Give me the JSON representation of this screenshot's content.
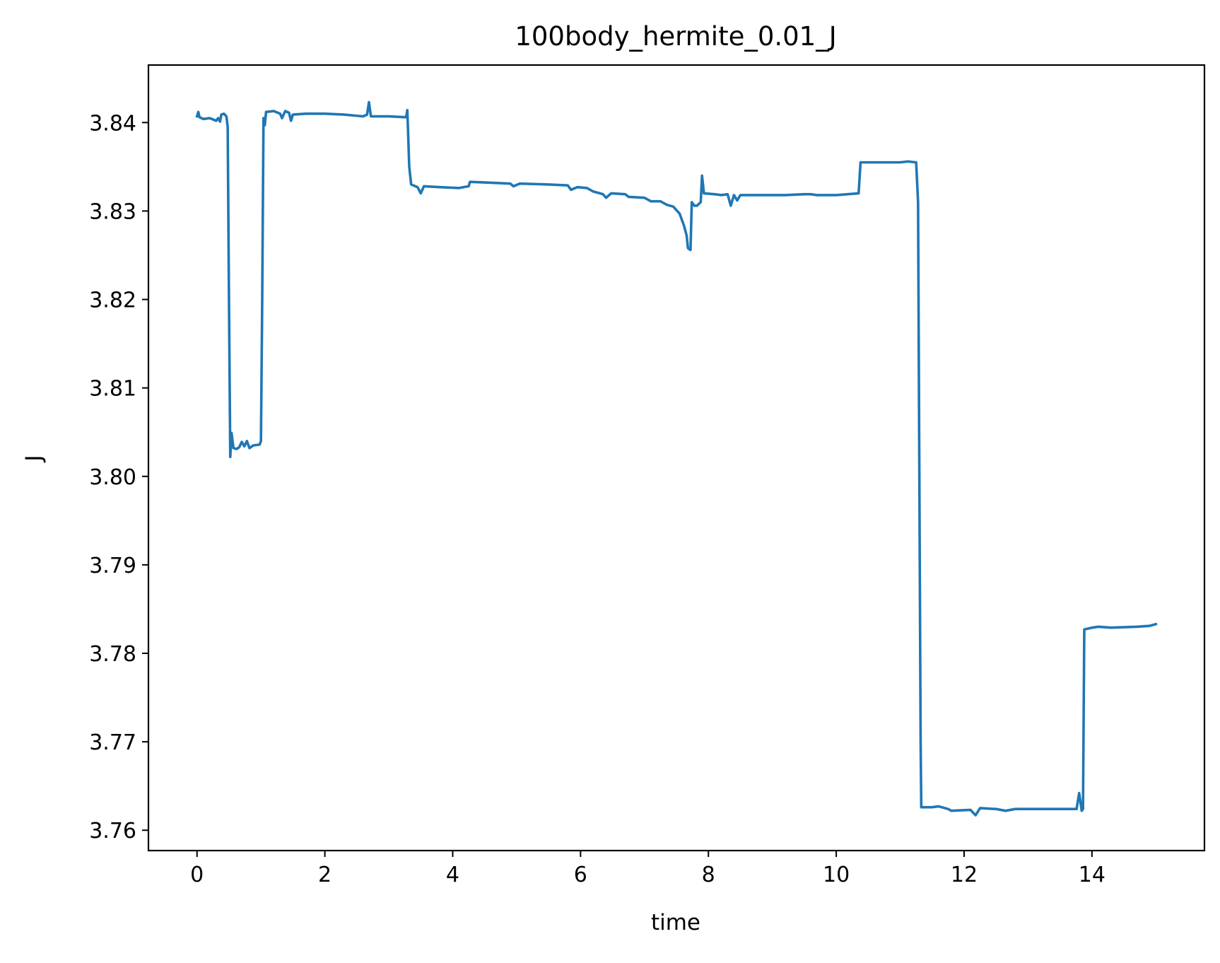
{
  "chart_data": {
    "type": "line",
    "title": "100body_hermite_0.01_J",
    "xlabel": "time",
    "ylabel": "J",
    "xlim": [
      -0.76,
      15.76
    ],
    "ylim": [
      3.7577,
      3.8465
    ],
    "xticks": [
      0,
      2,
      4,
      6,
      8,
      10,
      12,
      14
    ],
    "xtick_labels": [
      "0",
      "2",
      "4",
      "6",
      "8",
      "10",
      "12",
      "14"
    ],
    "yticks": [
      3.76,
      3.77,
      3.78,
      3.79,
      3.8,
      3.81,
      3.82,
      3.83,
      3.84
    ],
    "ytick_labels": [
      "3.76",
      "3.77",
      "3.78",
      "3.79",
      "3.80",
      "3.81",
      "3.82",
      "3.83",
      "3.84"
    ],
    "grid": false,
    "legend": "none",
    "series": [
      {
        "color": "#1f77b4",
        "points": [
          [
            0.0,
            3.8407
          ],
          [
            0.02,
            3.8412
          ],
          [
            0.04,
            3.8406
          ],
          [
            0.1,
            3.8404
          ],
          [
            0.2,
            3.8405
          ],
          [
            0.3,
            3.8402
          ],
          [
            0.33,
            3.8405
          ],
          [
            0.36,
            3.8401
          ],
          [
            0.38,
            3.8409
          ],
          [
            0.42,
            3.841
          ],
          [
            0.46,
            3.8407
          ],
          [
            0.48,
            3.8395
          ],
          [
            0.5,
            3.82
          ],
          [
            0.52,
            3.8022
          ],
          [
            0.54,
            3.8049
          ],
          [
            0.57,
            3.8032
          ],
          [
            0.62,
            3.8031
          ],
          [
            0.66,
            3.8033
          ],
          [
            0.7,
            3.8039
          ],
          [
            0.74,
            3.8034
          ],
          [
            0.78,
            3.804
          ],
          [
            0.82,
            3.8032
          ],
          [
            0.88,
            3.8035
          ],
          [
            0.98,
            3.8036
          ],
          [
            1.0,
            3.804
          ],
          [
            1.02,
            3.82
          ],
          [
            1.04,
            3.8405
          ],
          [
            1.06,
            3.8397
          ],
          [
            1.08,
            3.8412
          ],
          [
            1.2,
            3.8413
          ],
          [
            1.3,
            3.841
          ],
          [
            1.33,
            3.8405
          ],
          [
            1.38,
            3.8413
          ],
          [
            1.44,
            3.8411
          ],
          [
            1.47,
            3.8402
          ],
          [
            1.5,
            3.8409
          ],
          [
            1.7,
            3.841
          ],
          [
            2.0,
            3.841
          ],
          [
            2.3,
            3.8409
          ],
          [
            2.6,
            3.8407
          ],
          [
            2.66,
            3.8409
          ],
          [
            2.69,
            3.8423
          ],
          [
            2.72,
            3.8407
          ],
          [
            3.0,
            3.8407
          ],
          [
            3.27,
            3.8406
          ],
          [
            3.29,
            3.8414
          ],
          [
            3.32,
            3.835
          ],
          [
            3.35,
            3.833
          ],
          [
            3.45,
            3.8327
          ],
          [
            3.5,
            3.832
          ],
          [
            3.55,
            3.8328
          ],
          [
            3.8,
            3.8327
          ],
          [
            4.1,
            3.8326
          ],
          [
            4.25,
            3.8328
          ],
          [
            4.27,
            3.8333
          ],
          [
            4.6,
            3.8332
          ],
          [
            4.9,
            3.8331
          ],
          [
            4.95,
            3.8328
          ],
          [
            5.05,
            3.8331
          ],
          [
            5.5,
            3.833
          ],
          [
            5.8,
            3.8329
          ],
          [
            5.85,
            3.8324
          ],
          [
            5.95,
            3.8327
          ],
          [
            6.1,
            3.8326
          ],
          [
            6.2,
            3.8322
          ],
          [
            6.35,
            3.8319
          ],
          [
            6.4,
            3.8315
          ],
          [
            6.48,
            3.832
          ],
          [
            6.7,
            3.8319
          ],
          [
            6.75,
            3.8316
          ],
          [
            7.0,
            3.8315
          ],
          [
            7.1,
            3.8311
          ],
          [
            7.25,
            3.8311
          ],
          [
            7.35,
            3.8307
          ],
          [
            7.45,
            3.8305
          ],
          [
            7.55,
            3.8297
          ],
          [
            7.62,
            3.8283
          ],
          [
            7.66,
            3.8272
          ],
          [
            7.68,
            3.8258
          ],
          [
            7.72,
            3.8256
          ],
          [
            7.74,
            3.831
          ],
          [
            7.78,
            3.8306
          ],
          [
            7.82,
            3.8306
          ],
          [
            7.88,
            3.831
          ],
          [
            7.9,
            3.834
          ],
          [
            7.93,
            3.832
          ],
          [
            8.1,
            3.8319
          ],
          [
            8.2,
            3.8318
          ],
          [
            8.3,
            3.8319
          ],
          [
            8.35,
            3.8306
          ],
          [
            8.4,
            3.8318
          ],
          [
            8.45,
            3.8312
          ],
          [
            8.5,
            3.8318
          ],
          [
            8.8,
            3.8318
          ],
          [
            9.2,
            3.8318
          ],
          [
            9.5,
            3.8319
          ],
          [
            9.6,
            3.8319
          ],
          [
            9.7,
            3.8318
          ],
          [
            10.0,
            3.8318
          ],
          [
            10.35,
            3.832
          ],
          [
            10.38,
            3.8355
          ],
          [
            10.7,
            3.8355
          ],
          [
            11.0,
            3.8355
          ],
          [
            11.12,
            3.8356
          ],
          [
            11.25,
            3.8355
          ],
          [
            11.28,
            3.831
          ],
          [
            11.3,
            3.8
          ],
          [
            11.32,
            3.77
          ],
          [
            11.33,
            3.7626
          ],
          [
            11.5,
            3.7626
          ],
          [
            11.6,
            3.7627
          ],
          [
            11.75,
            3.7624
          ],
          [
            11.8,
            3.7622
          ],
          [
            12.1,
            3.7623
          ],
          [
            12.18,
            3.7617
          ],
          [
            12.25,
            3.7625
          ],
          [
            12.5,
            3.7624
          ],
          [
            12.65,
            3.7622
          ],
          [
            12.8,
            3.7624
          ],
          [
            13.2,
            3.7624
          ],
          [
            13.76,
            3.7624
          ],
          [
            13.8,
            3.7642
          ],
          [
            13.84,
            3.7622
          ],
          [
            13.86,
            3.7624
          ],
          [
            13.88,
            3.7827
          ],
          [
            14.0,
            3.7829
          ],
          [
            14.1,
            3.783
          ],
          [
            14.3,
            3.7829
          ],
          [
            14.7,
            3.783
          ],
          [
            14.9,
            3.7831
          ],
          [
            15.0,
            3.7833
          ]
        ]
      }
    ]
  }
}
